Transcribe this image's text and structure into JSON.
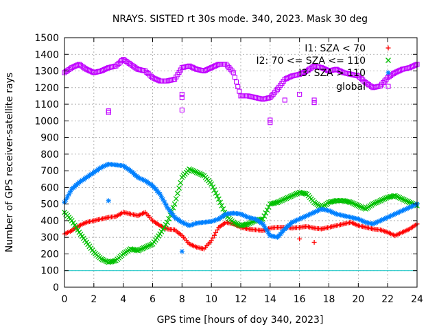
{
  "chart_data": {
    "type": "scatter",
    "title": "NRAYS. SISTED rt 30s mode. 340, 2023. Mask 30 deg",
    "xlabel": "GPS time [hours of doy 340, 2023]",
    "ylabel": "Number of GPS receiver-satellite rays",
    "xlim": [
      0,
      24
    ],
    "ylim": [
      0,
      1500
    ],
    "xticks": [
      0,
      2,
      4,
      6,
      8,
      10,
      12,
      14,
      16,
      18,
      20,
      22,
      24
    ],
    "yticks": [
      0,
      100,
      200,
      300,
      400,
      500,
      600,
      700,
      800,
      900,
      1000,
      1100,
      1200,
      1300,
      1400,
      1500
    ],
    "grid": true,
    "legend_position": "top-right",
    "reference_line": {
      "y": 100,
      "color": "#00c0c0"
    },
    "series": [
      {
        "name": "I1: SZA < 70",
        "marker": "+",
        "color": "#ff0000",
        "x": [
          0,
          0.5,
          1,
          1.5,
          2,
          2.5,
          3,
          3.5,
          4,
          4.5,
          5,
          5.5,
          6,
          6.5,
          7,
          7.5,
          8,
          8.5,
          9,
          9.5,
          10,
          10.5,
          11,
          11.5,
          12,
          12.5,
          13,
          13.5,
          14,
          14.5,
          15,
          15.5,
          16,
          16.5,
          17,
          17.5,
          18,
          18.5,
          19,
          19.5,
          20,
          20.5,
          21,
          21.5,
          22,
          22.5,
          23,
          23.5,
          24
        ],
        "y": [
          320,
          340,
          370,
          390,
          400,
          410,
          420,
          425,
          450,
          440,
          430,
          450,
          400,
          370,
          350,
          345,
          310,
          260,
          240,
          230,
          280,
          360,
          390,
          380,
          360,
          350,
          345,
          340,
          355,
          360,
          360,
          355,
          360,
          365,
          355,
          350,
          360,
          370,
          380,
          390,
          370,
          360,
          350,
          345,
          330,
          310,
          330,
          350,
          380
        ]
      },
      {
        "name": "I2: 70 <= SZA <= 110",
        "marker": "x",
        "color": "#00c000",
        "x": [
          0,
          0.5,
          1,
          1.5,
          2,
          2.5,
          3,
          3.5,
          4,
          4.5,
          5,
          5.5,
          6,
          6.5,
          7,
          7.5,
          8,
          8.5,
          9,
          9.5,
          10,
          10.5,
          11,
          11.5,
          12,
          12.5,
          13,
          13.5,
          14,
          14.5,
          15,
          15.5,
          16,
          16.5,
          17,
          17.5,
          18,
          18.5,
          19,
          19.5,
          20,
          20.5,
          21,
          21.5,
          22,
          22.5,
          23,
          23.5,
          24
        ],
        "y": [
          450,
          400,
          330,
          270,
          210,
          170,
          150,
          160,
          200,
          230,
          220,
          240,
          260,
          320,
          390,
          500,
          660,
          710,
          690,
          670,
          620,
          530,
          430,
          390,
          370,
          380,
          400,
          410,
          500,
          510,
          530,
          550,
          570,
          560,
          510,
          480,
          510,
          520,
          520,
          510,
          490,
          470,
          500,
          520,
          540,
          550,
          530,
          510,
          490
        ]
      },
      {
        "name": "I3: SZA > 110",
        "marker": "*",
        "color": "#0080ff",
        "x": [
          0,
          0.5,
          1,
          1.5,
          2,
          2.5,
          3,
          3.5,
          4,
          4.5,
          5,
          5.5,
          6,
          6.5,
          7,
          7.5,
          8,
          8.5,
          9,
          9.5,
          10,
          10.5,
          11,
          11.5,
          12,
          12.5,
          13,
          13.5,
          14,
          14.5,
          15,
          15.5,
          16,
          16.5,
          17,
          17.5,
          18,
          18.5,
          19,
          19.5,
          20,
          20.5,
          21,
          21.5,
          22,
          22.5,
          23,
          23.5,
          24
        ],
        "y": [
          510,
          590,
          630,
          660,
          690,
          720,
          740,
          735,
          730,
          700,
          660,
          640,
          610,
          560,
          480,
          420,
          390,
          370,
          385,
          390,
          395,
          410,
          440,
          445,
          440,
          420,
          410,
          380,
          310,
          300,
          350,
          390,
          410,
          430,
          450,
          470,
          460,
          440,
          430,
          420,
          410,
          390,
          380,
          400,
          420,
          440,
          460,
          480,
          500
        ]
      },
      {
        "name": "global",
        "marker": "square",
        "color": "#c000ff",
        "x": [
          0,
          0.5,
          1,
          1.5,
          2,
          2.5,
          3,
          3.5,
          4,
          4.5,
          5,
          5.5,
          6,
          6.5,
          7,
          7.5,
          8,
          8.5,
          9,
          9.5,
          10,
          10.5,
          11,
          11.5,
          12,
          12.5,
          13,
          13.5,
          14,
          14.5,
          15,
          15.5,
          16,
          16.5,
          17,
          17.5,
          18,
          18.5,
          19,
          19.5,
          20,
          20.5,
          21,
          21.5,
          22,
          22.5,
          23,
          23.5,
          24
        ],
        "y": [
          1290,
          1320,
          1340,
          1310,
          1290,
          1300,
          1320,
          1330,
          1370,
          1340,
          1310,
          1300,
          1260,
          1240,
          1240,
          1250,
          1320,
          1330,
          1310,
          1300,
          1320,
          1340,
          1340,
          1290,
          1150,
          1150,
          1140,
          1130,
          1140,
          1190,
          1250,
          1270,
          1280,
          1300,
          1330,
          1320,
          1300,
          1310,
          1290,
          1280,
          1270,
          1230,
          1200,
          1210,
          1260,
          1290,
          1310,
          1320,
          1340
        ]
      }
    ],
    "outliers": [
      {
        "series": "global",
        "x": 3,
        "y": 1050
      },
      {
        "series": "global",
        "x": 3,
        "y": 1060
      },
      {
        "series": "global",
        "x": 8,
        "y": 1160
      },
      {
        "series": "global",
        "x": 8,
        "y": 1065
      },
      {
        "series": "global",
        "x": 8,
        "y": 1140
      },
      {
        "series": "global",
        "x": 14,
        "y": 990
      },
      {
        "series": "global",
        "x": 14,
        "y": 1005
      },
      {
        "series": "global",
        "x": 15,
        "y": 1125
      },
      {
        "series": "global",
        "x": 16,
        "y": 1160
      },
      {
        "series": "global",
        "x": 17,
        "y": 1110
      },
      {
        "series": "global",
        "x": 17,
        "y": 1125
      },
      {
        "series": "I3: SZA > 110",
        "x": 3,
        "y": 520
      },
      {
        "series": "I3: SZA > 110",
        "x": 8,
        "y": 215
      },
      {
        "series": "I1: SZA < 70",
        "x": 16,
        "y": 290
      },
      {
        "series": "I1: SZA < 70",
        "x": 17,
        "y": 270
      }
    ]
  }
}
